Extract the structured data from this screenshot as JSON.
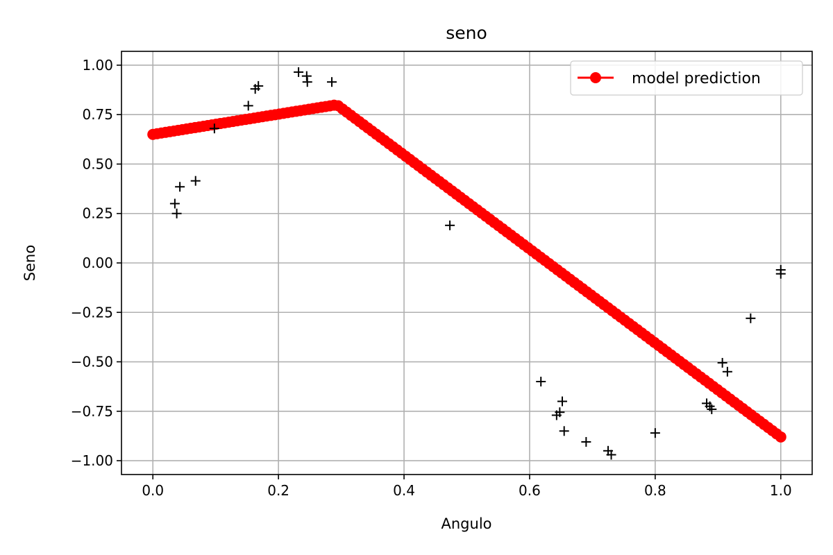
{
  "chart_data": {
    "type": "scatter",
    "title": "seno",
    "xlabel": "Angulo",
    "ylabel": "Seno",
    "xlim": [
      -0.05,
      1.05
    ],
    "ylim": [
      -1.07,
      1.07
    ],
    "grid": true,
    "legend_placement": "top-right",
    "x_ticks": [
      0.0,
      0.2,
      0.4,
      0.6,
      0.8,
      1.0
    ],
    "x_tick_labels": [
      "0.0",
      "0.2",
      "0.4",
      "0.6",
      "0.8",
      "1.0"
    ],
    "y_ticks": [
      1.0,
      0.75,
      0.5,
      0.25,
      0.0,
      -0.25,
      -0.5,
      -0.75,
      -1.0
    ],
    "y_tick_labels": [
      "1.00",
      "0.75",
      "0.50",
      "0.25",
      "0.00",
      "−0.25",
      "−0.50",
      "−0.75",
      "−1.00"
    ],
    "series": [
      {
        "name": "model prediction",
        "style": "line-with-circle-markers",
        "color": "#ff0000",
        "vertices": [
          [
            0.0,
            0.65
          ],
          [
            0.293,
            0.8
          ],
          [
            1.0,
            -0.88
          ]
        ],
        "marker_count": 150
      },
      {
        "style": "plus-markers",
        "color": "#000000",
        "points": [
          [
            0.035,
            0.3
          ],
          [
            0.038,
            0.25
          ],
          [
            0.043,
            0.385
          ],
          [
            0.068,
            0.415
          ],
          [
            0.098,
            0.68
          ],
          [
            0.152,
            0.795
          ],
          [
            0.163,
            0.88
          ],
          [
            0.168,
            0.895
          ],
          [
            0.232,
            0.965
          ],
          [
            0.245,
            0.945
          ],
          [
            0.246,
            0.915
          ],
          [
            0.285,
            0.915
          ],
          [
            0.473,
            0.19
          ],
          [
            0.618,
            -0.6
          ],
          [
            0.643,
            -0.77
          ],
          [
            0.648,
            -0.755
          ],
          [
            0.652,
            -0.7
          ],
          [
            0.655,
            -0.85
          ],
          [
            0.69,
            -0.905
          ],
          [
            0.725,
            -0.95
          ],
          [
            0.73,
            -0.97
          ],
          [
            0.8,
            -0.86
          ],
          [
            0.882,
            -0.71
          ],
          [
            0.887,
            -0.725
          ],
          [
            0.89,
            -0.74
          ],
          [
            0.907,
            -0.505
          ],
          [
            0.915,
            -0.55
          ],
          [
            0.952,
            -0.28
          ],
          [
            1.0,
            -0.035
          ],
          [
            1.0,
            -0.055
          ]
        ]
      }
    ]
  }
}
